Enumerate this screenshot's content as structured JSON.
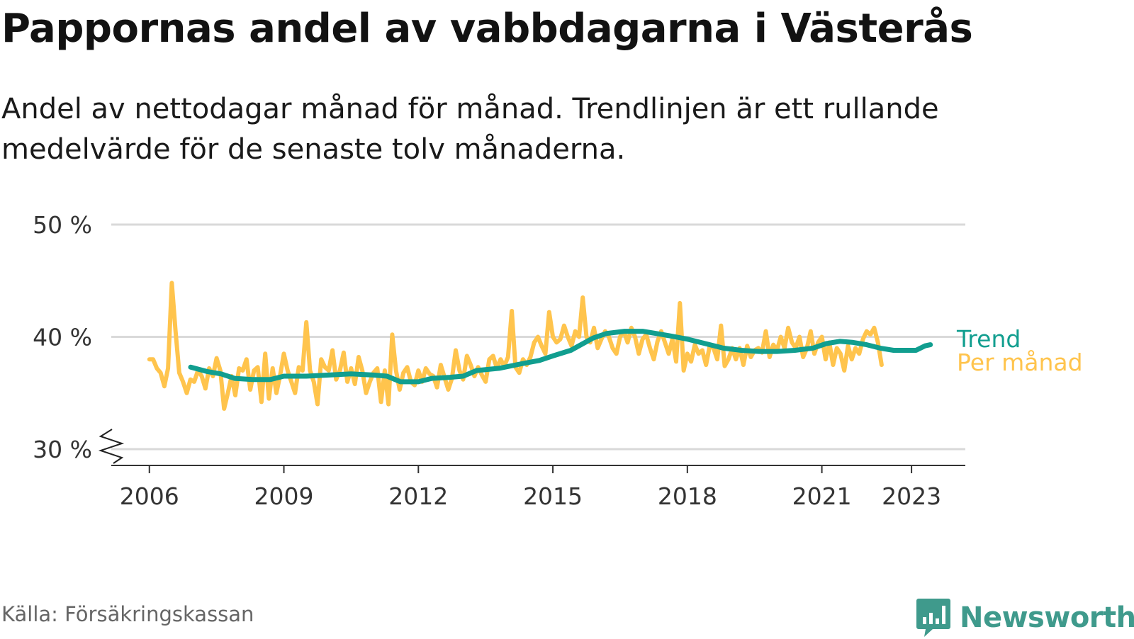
{
  "title": "Pappornas andel av vabbdagarna i Västerås",
  "subtitle": "Andel av nettodagar månad för månad. Trendlinjen är ett rullande medelvärde för de senaste tolv månaderna.",
  "source": "Källa: Försäkringskassan",
  "brand": "Newsworthy",
  "colors": {
    "monthly": "#ffc44d",
    "trend": "#119e8f",
    "grid": "#d9d9d9",
    "text": "#121212"
  },
  "chart_data": {
    "type": "line",
    "y_ticks": [
      {
        "value": 30,
        "label": "30 %"
      },
      {
        "value": 40,
        "label": "40 %"
      },
      {
        "value": 50,
        "label": "50 %"
      }
    ],
    "ylim": [
      30,
      50
    ],
    "y_axis_break": true,
    "x_ticks": [
      {
        "value": 2006,
        "label": "2006"
      },
      {
        "value": 2009,
        "label": "2009"
      },
      {
        "value": 2012,
        "label": "2012"
      },
      {
        "value": 2015,
        "label": "2015"
      },
      {
        "value": 2018,
        "label": "2018"
      },
      {
        "value": 2021,
        "label": "2021"
      },
      {
        "value": 2023,
        "label": "2023"
      }
    ],
    "xlim": [
      2005.15,
      2024.2
    ],
    "series": [
      {
        "name": "Per månad",
        "label_color": "#ffc44d",
        "x_start": 2006.0,
        "x_step": 0.0833333,
        "values": [
          38.0,
          38.0,
          37.2,
          36.8,
          35.6,
          37.2,
          44.8,
          40.5,
          36.8,
          36.0,
          35.0,
          36.2,
          36.0,
          37.0,
          36.5,
          35.4,
          37.2,
          36.5,
          38.1,
          37.0,
          33.6,
          35.0,
          36.5,
          34.8,
          37.2,
          37.0,
          38.0,
          35.3,
          37.0,
          37.3,
          34.2,
          38.5,
          34.5,
          37.2,
          35.0,
          36.6,
          38.5,
          37.0,
          36.0,
          35.0,
          37.3,
          37.0,
          41.3,
          37.0,
          36.0,
          34.0,
          38.0,
          37.3,
          37.0,
          38.8,
          36.2,
          37.0,
          38.6,
          36.0,
          37.2,
          35.8,
          38.2,
          37.0,
          35.0,
          36.0,
          36.8,
          37.2,
          34.2,
          37.0,
          34.0,
          40.2,
          37.0,
          35.3,
          36.8,
          37.3,
          36.0,
          35.7,
          37.0,
          36.0,
          37.2,
          36.7,
          36.5,
          35.5,
          37.5,
          36.4,
          35.3,
          36.3,
          38.8,
          37.0,
          36.2,
          38.3,
          37.5,
          36.5,
          37.3,
          36.6,
          36.0,
          38.0,
          38.3,
          37.2,
          38.0,
          37.4,
          38.2,
          42.3,
          37.3,
          36.8,
          38.0,
          37.5,
          38.2,
          39.5,
          40.0,
          39.2,
          38.5,
          42.2,
          40.0,
          39.5,
          39.8,
          41.0,
          40.0,
          39.2,
          40.5,
          40.0,
          43.5,
          40.0,
          39.5,
          40.8,
          39.0,
          39.8,
          40.5,
          40.0,
          39.0,
          38.5,
          40.0,
          40.5,
          39.5,
          40.8,
          40.0,
          38.5,
          39.8,
          40.2,
          39.0,
          38.0,
          39.6,
          40.5,
          39.5,
          38.5,
          39.8,
          37.8,
          43.0,
          37.0,
          38.5,
          37.8,
          39.3,
          38.5,
          38.8,
          37.5,
          39.2,
          39.0,
          38.0,
          41.0,
          37.4,
          38.0,
          39.0,
          38.0,
          39.0,
          37.5,
          39.2,
          38.2,
          38.8,
          39.0,
          38.6,
          40.5,
          38.2,
          39.3,
          38.8,
          40.0,
          39.0,
          40.8,
          39.5,
          39.0,
          40.0,
          38.2,
          39.0,
          40.5,
          38.5,
          39.5,
          40.0,
          38.0,
          39.5,
          37.5,
          39.0,
          38.5,
          37.0,
          39.2,
          38.0,
          39.0,
          38.5,
          39.8,
          40.5,
          40.2,
          40.8,
          39.5,
          37.5
        ]
      },
      {
        "name": "Trend",
        "label_color": "#119e8f",
        "points": [
          [
            2006.92,
            37.3
          ],
          [
            2007.3,
            36.9
          ],
          [
            2007.6,
            36.7
          ],
          [
            2007.9,
            36.3
          ],
          [
            2008.3,
            36.2
          ],
          [
            2008.7,
            36.2
          ],
          [
            2009.0,
            36.5
          ],
          [
            2009.5,
            36.5
          ],
          [
            2010.0,
            36.6
          ],
          [
            2010.5,
            36.7
          ],
          [
            2011.0,
            36.6
          ],
          [
            2011.3,
            36.5
          ],
          [
            2011.6,
            36.0
          ],
          [
            2012.0,
            36.0
          ],
          [
            2012.3,
            36.3
          ],
          [
            2012.7,
            36.4
          ],
          [
            2013.0,
            36.5
          ],
          [
            2013.3,
            37.0
          ],
          [
            2013.8,
            37.2
          ],
          [
            2014.3,
            37.6
          ],
          [
            2014.7,
            37.9
          ],
          [
            2015.0,
            38.3
          ],
          [
            2015.4,
            38.8
          ],
          [
            2015.9,
            39.9
          ],
          [
            2016.2,
            40.3
          ],
          [
            2016.6,
            40.5
          ],
          [
            2017.0,
            40.5
          ],
          [
            2017.3,
            40.3
          ],
          [
            2017.6,
            40.1
          ],
          [
            2018.0,
            39.8
          ],
          [
            2018.4,
            39.4
          ],
          [
            2018.8,
            39.0
          ],
          [
            2019.2,
            38.8
          ],
          [
            2019.6,
            38.7
          ],
          [
            2020.0,
            38.7
          ],
          [
            2020.4,
            38.8
          ],
          [
            2020.8,
            39.0
          ],
          [
            2021.1,
            39.4
          ],
          [
            2021.4,
            39.6
          ],
          [
            2021.7,
            39.5
          ],
          [
            2022.0,
            39.3
          ],
          [
            2022.3,
            39.0
          ],
          [
            2022.6,
            38.8
          ],
          [
            2022.9,
            38.8
          ],
          [
            2023.1,
            38.8
          ],
          [
            2023.3,
            39.2
          ],
          [
            2023.42,
            39.3
          ]
        ]
      }
    ]
  }
}
